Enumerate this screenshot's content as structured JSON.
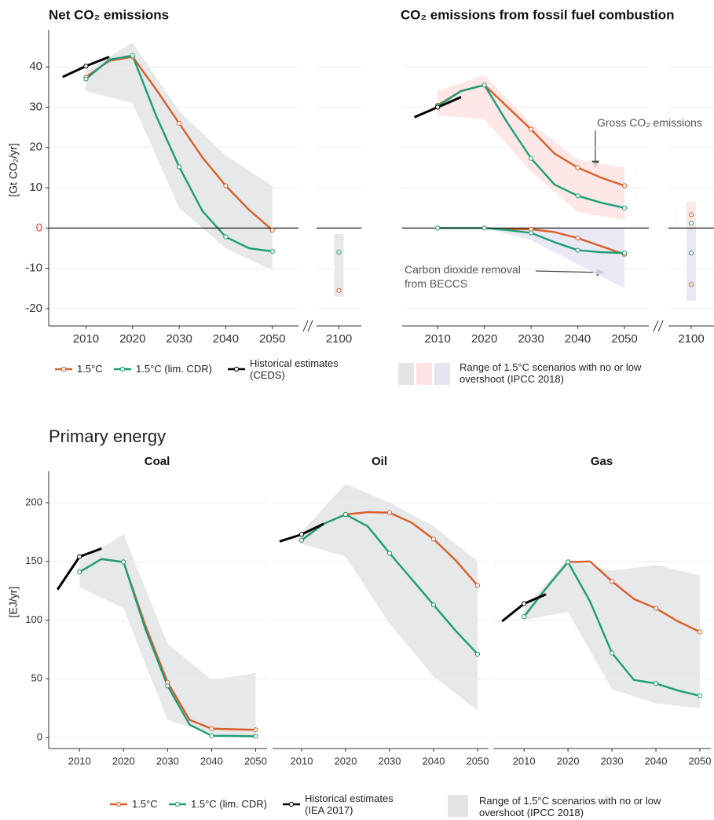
{
  "chart_data": [
    {
      "type": "line",
      "title": "Net CO₂ emissions",
      "ylabel": "[Gt CO₂/yr]",
      "x": [
        2010,
        2015,
        2020,
        2025,
        2030,
        2035,
        2040,
        2045,
        2050
      ],
      "xlim": [
        2002,
        2055.6
      ],
      "xticks": [
        2010,
        2020,
        2030,
        2040,
        2050
      ],
      "x_break": 2100,
      "ylim": [
        -24.3,
        49.2
      ],
      "yticks": [
        -20,
        -10,
        0,
        10,
        20,
        30,
        40
      ],
      "zero_label_color": "#e8463a",
      "zero_line": true,
      "grid": true,
      "series": [
        {
          "name": "1.5°C",
          "color": "#d95f28",
          "values": [
            37.5,
            41.5,
            42.5,
            34.5,
            26,
            17.5,
            10.5,
            4.5,
            -0.5
          ],
          "value_2100": -15.5
        },
        {
          "name": "1.5°C (lim. CDR)",
          "color": "#1b9e77",
          "values": [
            37,
            41.8,
            42.8,
            28,
            15.2,
            4.2,
            -2.2,
            -5,
            -5.8
          ],
          "value_2100": -6
        },
        {
          "name": "Historical estimates (CEDS)",
          "color": "#000000",
          "x": [
            2005,
            2010,
            2015
          ],
          "values": [
            37.5,
            40.2,
            42.5
          ]
        }
      ],
      "bands": [
        {
          "color": "#e3e4e5",
          "x": [
            2010,
            2020,
            2030,
            2040,
            2050
          ],
          "lower": [
            34,
            31,
            5,
            -5,
            -10.5
          ],
          "upper": [
            39,
            46,
            29,
            18,
            10.5
          ],
          "range_2100": [
            -17,
            -1.5
          ]
        }
      ]
    },
    {
      "type": "line",
      "title": "CO₂ emissions from fossil fuel combustion",
      "x": [
        2010,
        2015,
        2020,
        2025,
        2030,
        2035,
        2040,
        2045,
        2050
      ],
      "xlim": [
        2002.4,
        2055.2
      ],
      "xticks": [
        2010,
        2020,
        2030,
        2040,
        2050
      ],
      "x_break": 2100,
      "ylim": [
        -24.3,
        49.2
      ],
      "yticks": [
        -20,
        -10,
        0,
        10,
        20,
        30,
        40
      ],
      "zero_line": true,
      "grid": true,
      "annotations": [
        "Gross CO₂ emissions",
        "Carbon dioxide removal from BECCS"
      ],
      "range_label": "Range of 1.5°C scenarios with no or low overshoot (IPCC 2018)",
      "series": [
        {
          "name": "1.5°C",
          "color": "#d95f28",
          "values": [
            30.5,
            34,
            35.5,
            30,
            24.5,
            18.5,
            15,
            12.5,
            10.5
          ],
          "value_2100": 3.3
        },
        {
          "name": "1.5°C (lim. CDR)",
          "color": "#1b9e77",
          "values": [
            30.3,
            34,
            35.5,
            26,
            17.3,
            10.8,
            8,
            6.3,
            5
          ],
          "value_2100": 1.2
        },
        {
          "name": "1.5°C",
          "color": "#d95f28",
          "values": [
            0,
            0,
            0,
            -0.3,
            -0.3,
            -1,
            -2.5,
            -4.5,
            -6.5
          ],
          "value_2100": -14
        },
        {
          "name": "1.5°C (lim. CDR)",
          "color": "#1b9e77",
          "values": [
            0,
            0,
            0,
            -0.5,
            -1.2,
            -3.5,
            -5.5,
            -6,
            -6.2
          ],
          "value_2100": -6.2
        },
        {
          "name": "Historical estimates (CEDS)",
          "color": "#000000",
          "x": [
            2005,
            2010,
            2015
          ],
          "values": [
            27.5,
            30,
            32.5
          ]
        }
      ],
      "bands": [
        {
          "color": "#fde3e3",
          "x": [
            2010,
            2020,
            2030,
            2040,
            2050
          ],
          "lower": [
            28,
            27,
            14,
            4,
            2
          ],
          "upper": [
            34,
            38,
            26,
            17,
            15
          ],
          "range_2100": [
            -1,
            6.5
          ]
        },
        {
          "color": "#e6e4f3",
          "x": [
            2010,
            2020,
            2030,
            2040,
            2050
          ],
          "lower": [
            0,
            0,
            -3,
            -9,
            -15
          ],
          "upper": [
            0,
            0,
            0,
            0,
            0
          ],
          "range_2100": [
            -18,
            0
          ]
        }
      ]
    },
    {
      "type": "line",
      "section_title": "Primary energy",
      "title": "Coal",
      "ylabel": "[EJ/yr]",
      "range_label": "Range of 1.5°C scenarios with no or low overshoot (IPCC 2018)",
      "x": [
        2010,
        2015,
        2020,
        2025,
        2030,
        2035,
        2040,
        2045,
        2050
      ],
      "xlim": [
        2003,
        2052.6
      ],
      "xticks": [
        2010,
        2020,
        2030,
        2040,
        2050
      ],
      "ylim": [
        -9.4,
        226.8
      ],
      "yticks": [
        0,
        50,
        100,
        150,
        200
      ],
      "grid": true,
      "series": [
        {
          "name": "1.5°C",
          "color": "#d95f28",
          "values": [
            141,
            152,
            149.5,
            95,
            47,
            15,
            7.5,
            7,
            6.5
          ]
        },
        {
          "name": "1.5°C (lim. CDR)",
          "color": "#1b9e77",
          "values": [
            141,
            152,
            149.5,
            92,
            44,
            11,
            1.5,
            1.3,
            1
          ]
        },
        {
          "name": "Historical estimates (IEA 2017)",
          "color": "#000000",
          "x": [
            2005,
            2010,
            2015
          ],
          "values": [
            126,
            154,
            161
          ]
        }
      ],
      "bands": [
        {
          "color": "#e3e4e5",
          "x": [
            2010,
            2020,
            2030,
            2040,
            2050
          ],
          "lower": [
            128,
            110,
            15,
            3,
            0
          ],
          "upper": [
            150,
            173,
            80,
            49,
            55
          ]
        }
      ]
    },
    {
      "type": "line",
      "title": "Oil",
      "x": [
        2010,
        2015,
        2020,
        2025,
        2030,
        2035,
        2040,
        2045,
        2050
      ],
      "xlim": [
        2003.4,
        2052.5
      ],
      "xticks": [
        2010,
        2020,
        2030,
        2040,
        2050
      ],
      "ylim": [
        -9.4,
        226.8
      ],
      "yticks": [
        0,
        50,
        100,
        150,
        200
      ],
      "grid": true,
      "series": [
        {
          "name": "1.5°C",
          "color": "#d95f28",
          "values": [
            168,
            182,
            190,
            192,
            191.5,
            183,
            169,
            151,
            129.5
          ]
        },
        {
          "name": "1.5°C (lim. CDR)",
          "color": "#1b9e77",
          "values": [
            168,
            182,
            190,
            180,
            157,
            135,
            113,
            91,
            71
          ]
        },
        {
          "name": "Historical estimates (IEA 2017)",
          "color": "#000000",
          "x": [
            2005,
            2010,
            2015
          ],
          "values": [
            167,
            173,
            182
          ]
        }
      ],
      "bands": [
        {
          "color": "#e3e4e5",
          "x": [
            2010,
            2020,
            2030,
            2040,
            2050
          ],
          "lower": [
            165,
            154,
            97,
            52,
            23
          ],
          "upper": [
            175,
            216,
            200,
            180,
            150
          ]
        }
      ]
    },
    {
      "type": "line",
      "title": "Gas",
      "x": [
        2010,
        2015,
        2020,
        2025,
        2030,
        2035,
        2040,
        2045,
        2050
      ],
      "xlim": [
        2003,
        2052.5
      ],
      "xticks": [
        2010,
        2020,
        2030,
        2040,
        2050
      ],
      "ylim": [
        -9.4,
        226.8
      ],
      "yticks": [
        0,
        50,
        100,
        150,
        200
      ],
      "grid": true,
      "series": [
        {
          "name": "1.5°C",
          "color": "#d95f28",
          "values": [
            103,
            127,
            149.5,
            150,
            133,
            118,
            110,
            99,
            90
          ]
        },
        {
          "name": "1.5°C (lim. CDR)",
          "color": "#1b9e77",
          "values": [
            103,
            127,
            149.5,
            116,
            72,
            49,
            46,
            40,
            35.5
          ]
        },
        {
          "name": "Historical estimates (IEA 2017)",
          "color": "#000000",
          "x": [
            2005,
            2010,
            2015
          ],
          "values": [
            99,
            114,
            122
          ]
        }
      ],
      "bands": [
        {
          "color": "#e3e4e5",
          "x": [
            2010,
            2020,
            2030,
            2040,
            2050
          ],
          "lower": [
            100,
            107,
            41,
            29,
            25
          ],
          "upper": [
            110,
            152,
            142,
            147,
            138
          ]
        }
      ]
    }
  ]
}
